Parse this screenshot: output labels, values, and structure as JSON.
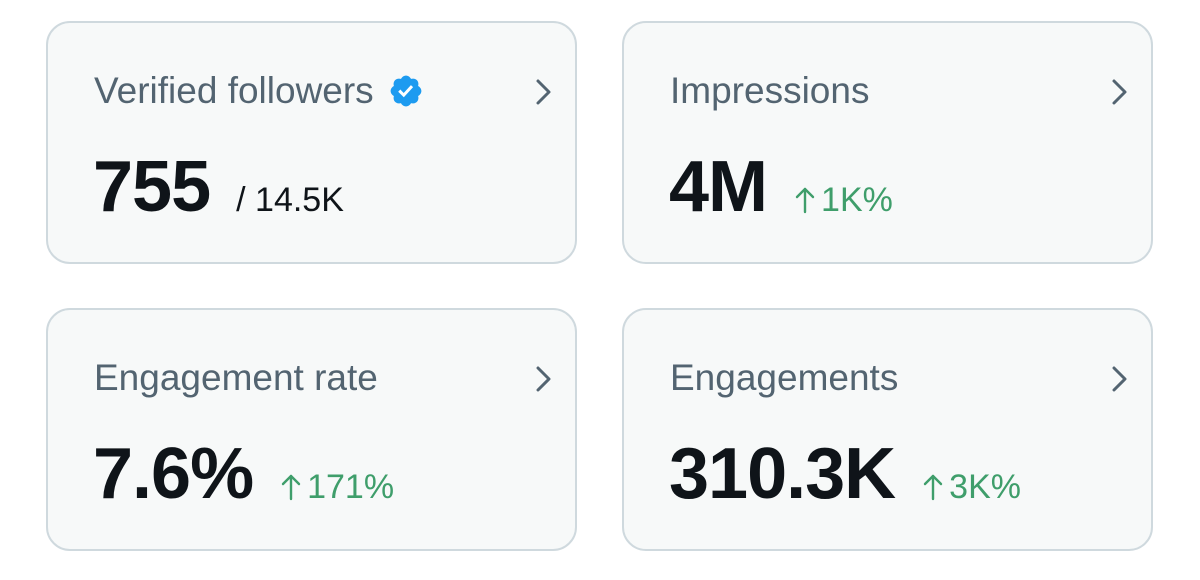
{
  "cards": [
    {
      "title": "Verified followers",
      "value": "755",
      "total": "/ 14.5K",
      "badge_icon": "verified-badge-icon",
      "badge_color": "#1d9bf0"
    },
    {
      "title": "Impressions",
      "value": "4M",
      "change": "1K%",
      "change_direction": "up"
    },
    {
      "title": "Engagement rate",
      "value": "7.6%",
      "change": "171%",
      "change_direction": "up"
    },
    {
      "title": "Engagements",
      "value": "310.3K",
      "change": "3K%",
      "change_direction": "up"
    }
  ],
  "colors": {
    "card_background": "#f7f9f9",
    "card_border": "#cfd9de",
    "title_text": "#536471",
    "value_text": "#0f1419",
    "positive_change": "#3f9e6b",
    "chevron": "#536471"
  },
  "icons": {
    "chevron": "chevron-right-icon",
    "change_arrow": "arrow-up-icon"
  }
}
